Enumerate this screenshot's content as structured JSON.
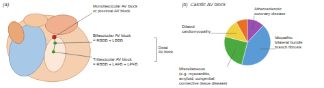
{
  "chart_data": {
    "type": "pie",
    "title": "(b)  Calcific AV block",
    "categories": [
      "Atherosclerotic\ncoronary disease",
      "Idiopathic\nbilateral bundle\nbranch fibrosis",
      "Miscellaneous\n(e.g. myocarditis,\namyloid, congenital,\nconnective tissue disease)",
      "Dilated\ncardiomyopathy",
      null
    ],
    "values": [
      12,
      42,
      25,
      13,
      8
    ],
    "colors": [
      "#9b4fb5",
      "#5b9bd5",
      "#4aaa40",
      "#f0d040",
      "#e87020"
    ],
    "annotations": [
      "(a)",
      "Monofascicular AV block\nor proximal AV block",
      "Bifascicular AV block\n= RBBB + LBBB",
      "Trifascicular AV block\n= RBBB + LAFB + LPFB",
      "Distal\nAV block"
    ]
  }
}
